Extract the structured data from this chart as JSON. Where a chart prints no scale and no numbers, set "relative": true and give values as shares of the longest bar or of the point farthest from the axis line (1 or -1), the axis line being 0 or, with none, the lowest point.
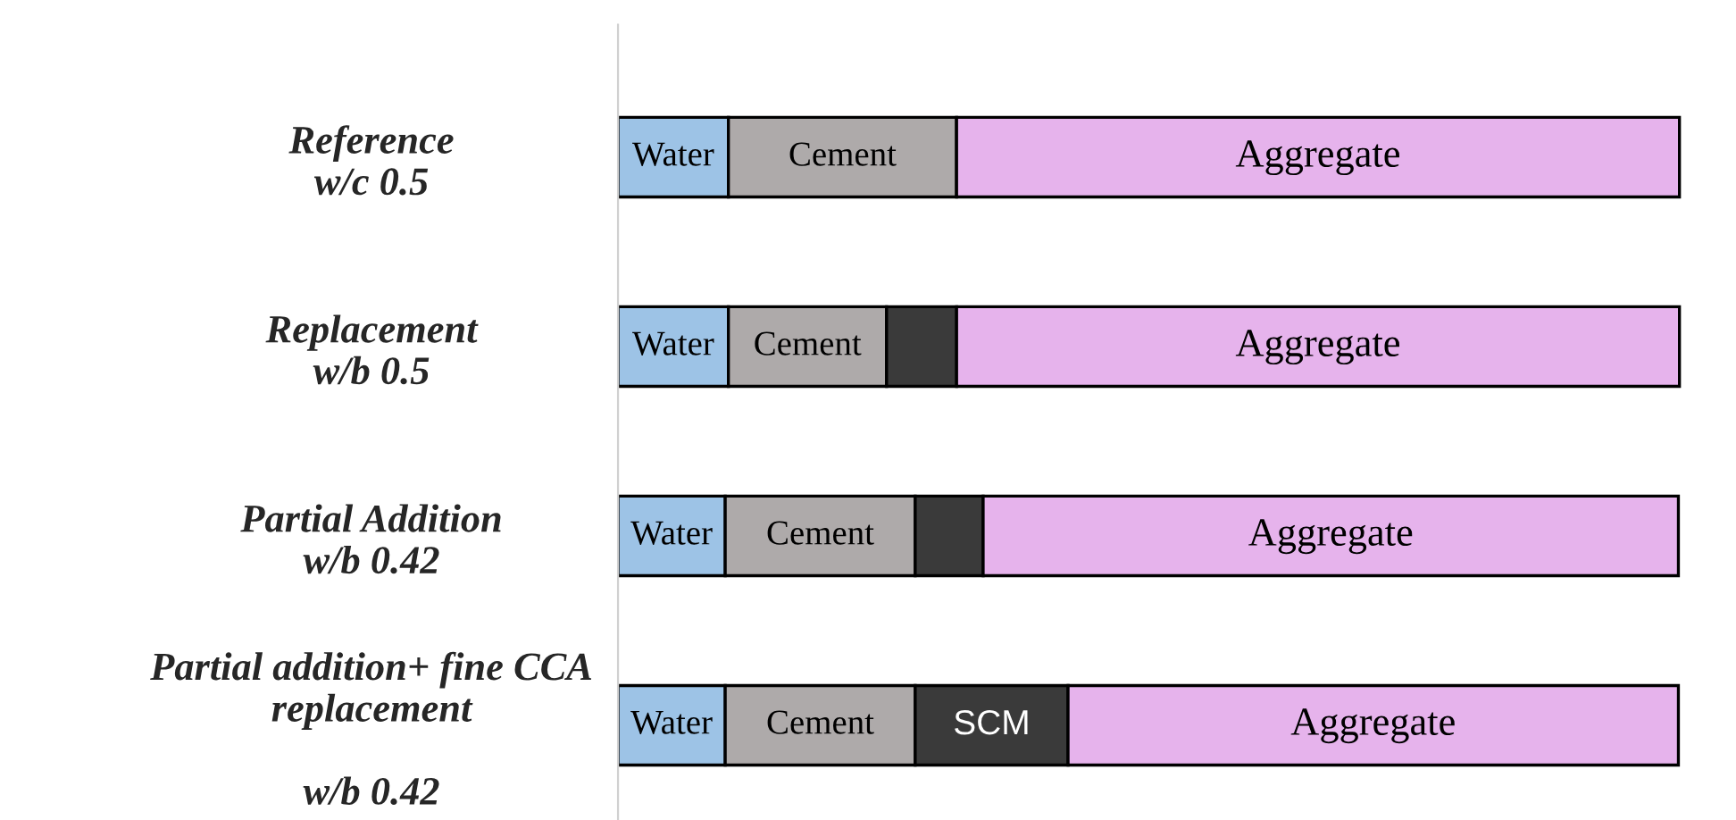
{
  "chart_data": {
    "type": "bar",
    "orientation": "horizontal",
    "stacked": true,
    "relative": true,
    "tick_labels": "y",
    "categories": [
      "Reference\nw/c 0.5",
      "Replacement\nw/b 0.5",
      "Partial Addition\nw/b 0.42",
      "Partial addition+ fine CCA\nreplacement\n\nw/b 0.42"
    ],
    "series": [
      {
        "name": "Water",
        "color": "#9dc3e6",
        "values": [
          0.104,
          0.104,
          0.101,
          0.101
        ]
      },
      {
        "name": "Cement",
        "color": "#aeaaaa",
        "values": [
          0.215,
          0.149,
          0.179,
          0.179
        ]
      },
      {
        "name": "SCM",
        "color": "#3a3a3a",
        "values": [
          0,
          0.066,
          0.064,
          0.144
        ]
      },
      {
        "name": "Aggregate",
        "color": "#e6b3ec",
        "values": [
          0.681,
          0.681,
          0.655,
          0.575
        ]
      }
    ]
  }
}
